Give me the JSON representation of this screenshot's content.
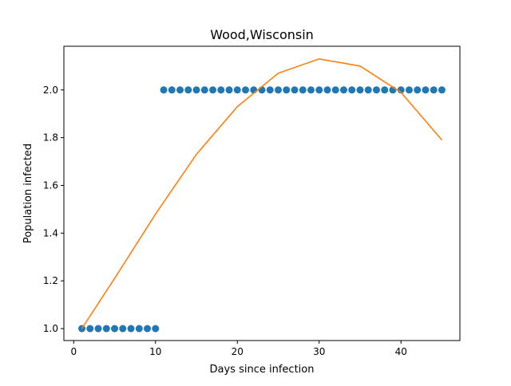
{
  "chart_data": {
    "type": "scatter",
    "title": "Wood,Wisconsin",
    "xlabel": "Days since infection",
    "ylabel": "Population infected",
    "xlim": [
      -1.2,
      47.2
    ],
    "ylim": [
      0.95,
      2.183
    ],
    "grid": false,
    "x_ticks": [
      0,
      10,
      20,
      30,
      40
    ],
    "x_tick_labels": [
      "0",
      "10",
      "20",
      "30",
      "40"
    ],
    "y_ticks": [
      1.0,
      1.2,
      1.4,
      1.6,
      1.8,
      2.0
    ],
    "y_tick_labels": [
      "1.0",
      "1.2",
      "1.4",
      "1.6",
      "1.8",
      "2.0"
    ],
    "series": [
      {
        "kind": "scatter",
        "color": "#1f77b4",
        "x": [
          1,
          2,
          3,
          4,
          5,
          6,
          7,
          8,
          9,
          10,
          11,
          12,
          13,
          14,
          15,
          16,
          17,
          18,
          19,
          20,
          21,
          22,
          23,
          24,
          25,
          26,
          27,
          28,
          29,
          30,
          31,
          32,
          33,
          34,
          35,
          36,
          37,
          38,
          39,
          40,
          41,
          42,
          43,
          44,
          45
        ],
        "y": [
          1,
          1,
          1,
          1,
          1,
          1,
          1,
          1,
          1,
          1,
          2,
          2,
          2,
          2,
          2,
          2,
          2,
          2,
          2,
          2,
          2,
          2,
          2,
          2,
          2,
          2,
          2,
          2,
          2,
          2,
          2,
          2,
          2,
          2,
          2,
          2,
          2,
          2,
          2,
          2,
          2,
          2,
          2,
          2,
          2
        ]
      },
      {
        "kind": "line",
        "color": "#ff7f0e",
        "x": [
          1,
          5,
          10,
          15,
          20,
          25,
          30,
          35,
          40,
          45
        ],
        "y": [
          1.0,
          1.21,
          1.48,
          1.73,
          1.93,
          2.07,
          2.13,
          2.1,
          1.99,
          1.79
        ]
      }
    ]
  }
}
